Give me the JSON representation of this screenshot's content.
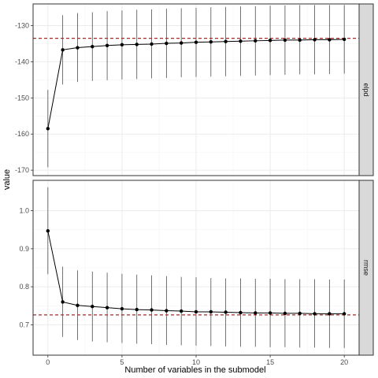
{
  "chart_data": {
    "type": "line",
    "xlabel": "Number of variables in the submodel",
    "ylabel": "value",
    "x_ticks": [
      0,
      5,
      10,
      15,
      20
    ],
    "grid": true,
    "colors": {
      "series": "#000000",
      "errorbar": "#4d4d4d",
      "reference": "#a52a2a",
      "strip_fill": "#d9d9d9",
      "grid_major": "#ebebeb"
    },
    "panels": [
      {
        "strip_label": "elpd",
        "x": [
          0,
          1,
          2,
          3,
          4,
          5,
          6,
          7,
          8,
          9,
          10,
          11,
          12,
          13,
          14,
          15,
          16,
          17,
          18,
          19,
          20
        ],
        "y": [
          -158.5,
          -136.7,
          -136.1,
          -135.8,
          -135.5,
          -135.3,
          -135.2,
          -135.1,
          -134.9,
          -134.8,
          -134.6,
          -134.5,
          -134.4,
          -134.3,
          -134.2,
          -134.1,
          -134.0,
          -134.0,
          -133.9,
          -133.9,
          -133.8
        ],
        "lower": [
          -169.2,
          -146.3,
          -145.6,
          -145.3,
          -145.1,
          -144.9,
          -144.8,
          -144.6,
          -144.5,
          -144.3,
          -144.2,
          -144.1,
          -144.0,
          -143.9,
          -143.8,
          -143.7,
          -143.6,
          -143.5,
          -143.5,
          -143.4,
          -143.3
        ],
        "upper": [
          -147.8,
          -127.1,
          -126.5,
          -126.3,
          -126.0,
          -125.8,
          -125.6,
          -125.5,
          -125.3,
          -125.2,
          -125.1,
          -124.9,
          -124.8,
          -124.7,
          -124.6,
          -124.5,
          -124.4,
          -124.3,
          -124.3,
          -124.3,
          -124.3
        ],
        "reference": -133.5,
        "ylim": [
          -171.5,
          -124.0
        ],
        "y_ticks": [
          -170,
          -160,
          -150,
          -140,
          -130
        ]
      },
      {
        "strip_label": "rmse",
        "x": [
          0,
          1,
          2,
          3,
          4,
          5,
          6,
          7,
          8,
          9,
          10,
          11,
          12,
          13,
          14,
          15,
          16,
          17,
          18,
          19,
          20
        ],
        "y": [
          0.947,
          0.76,
          0.751,
          0.748,
          0.745,
          0.742,
          0.74,
          0.739,
          0.737,
          0.736,
          0.734,
          0.734,
          0.733,
          0.732,
          0.731,
          0.731,
          0.73,
          0.73,
          0.729,
          0.729,
          0.729
        ],
        "lower": [
          0.833,
          0.668,
          0.66,
          0.656,
          0.654,
          0.652,
          0.65,
          0.649,
          0.647,
          0.646,
          0.645,
          0.644,
          0.643,
          0.642,
          0.642,
          0.641,
          0.641,
          0.64,
          0.64,
          0.639,
          0.639
        ],
        "upper": [
          1.062,
          0.853,
          0.843,
          0.84,
          0.837,
          0.834,
          0.832,
          0.83,
          0.828,
          0.826,
          0.825,
          0.823,
          0.822,
          0.822,
          0.821,
          0.821,
          0.82,
          0.82,
          0.82,
          0.819,
          0.819
        ],
        "reference": 0.726,
        "ylim": [
          0.62,
          1.08
        ],
        "y_ticks": [
          0.7,
          0.8,
          0.9,
          1.0
        ],
        "y_tick_labels": [
          "0.7",
          "0.8",
          "0.9",
          "1.0"
        ]
      }
    ]
  }
}
